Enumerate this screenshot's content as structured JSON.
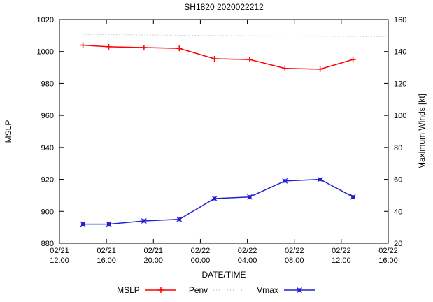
{
  "chart_data": {
    "type": "line",
    "title": "SH1820 2020022212",
    "xlabel": "DATE/TIME",
    "ylabel_left": "MSLP",
    "ylabel_right": "Maximum Winds [kt]",
    "grid": false,
    "legend_position": "bottom-center",
    "x_range_hours": [
      0,
      28
    ],
    "x_ticks": [
      {
        "hour": 0,
        "date": "02/21",
        "time": "12:00"
      },
      {
        "hour": 4,
        "date": "02/21",
        "time": "16:00"
      },
      {
        "hour": 8,
        "date": "02/21",
        "time": "20:00"
      },
      {
        "hour": 12,
        "date": "02/22",
        "time": "00:00"
      },
      {
        "hour": 16,
        "date": "02/22",
        "time": "04:00"
      },
      {
        "hour": 20,
        "date": "02/22",
        "time": "08:00"
      },
      {
        "hour": 24,
        "date": "02/22",
        "time": "12:00"
      },
      {
        "hour": 28,
        "date": "02/22",
        "time": "16:00"
      }
    ],
    "y_left": {
      "min": 880,
      "max": 1020,
      "tick_step": 20,
      "ticks": [
        880,
        900,
        920,
        940,
        960,
        980,
        1000,
        1020
      ]
    },
    "y_right": {
      "min": 20,
      "max": 160,
      "tick_step": 20,
      "ticks": [
        20,
        40,
        60,
        80,
        100,
        120,
        140,
        160
      ]
    },
    "series": [
      {
        "name": "MSLP",
        "axis": "left",
        "color": "#ff0000",
        "style": "solid",
        "marker": "plus",
        "x_hours": [
          2,
          4.2,
          7.2,
          10.2,
          13.2,
          16.2,
          19.2,
          22.2,
          25
        ],
        "values": [
          1004,
          1003,
          1002.5,
          1002,
          995.5,
          995,
          989.5,
          989,
          995
        ]
      },
      {
        "name": "Penv",
        "axis": "left",
        "color": "#aaaaaa",
        "style": "dotted",
        "marker": "none",
        "x_hours": [
          2,
          6,
          10,
          14,
          18,
          22,
          26,
          28
        ],
        "values": [
          1010.7,
          1010.5,
          1010.2,
          1010,
          1009.8,
          1009.6,
          1009.4,
          1009.3
        ]
      },
      {
        "name": "Vmax",
        "axis": "right",
        "color": "#2121d1",
        "style": "solid",
        "marker": "square-x",
        "x_hours": [
          2,
          4.2,
          7.2,
          10.2,
          13.2,
          16.2,
          19.2,
          22.2,
          25
        ],
        "values": [
          32,
          32,
          34,
          35,
          48,
          49,
          59,
          60,
          49
        ]
      }
    ],
    "legend": {
      "entries": [
        "MSLP",
        "Penv",
        "Vmax"
      ]
    }
  }
}
